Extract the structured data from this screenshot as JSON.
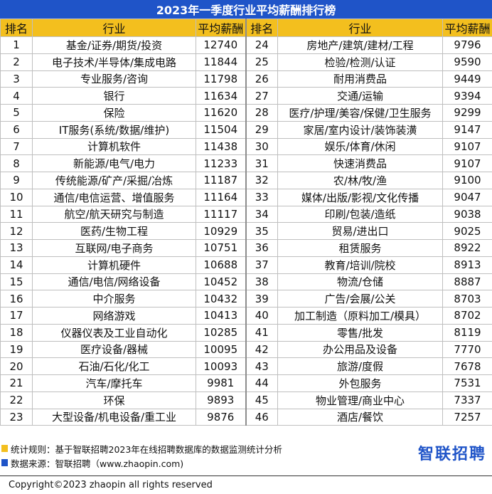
{
  "title": "2023年一季度行业平均薪酬排行榜",
  "headers": [
    "排名",
    "行业",
    "平均薪酬",
    "排名",
    "行业",
    "平均薪酬"
  ],
  "rows": [
    [
      [
        "1",
        "基金/证券/期货/投资",
        "12740"
      ],
      [
        "24",
        "房地产/建筑/建材/工程",
        "9796"
      ]
    ],
    [
      [
        "2",
        "电子技术/半导体/集成电路",
        "11844"
      ],
      [
        "25",
        "检验/检测/认证",
        "9590"
      ]
    ],
    [
      [
        "3",
        "专业服务/咨询",
        "11798"
      ],
      [
        "26",
        "耐用消费品",
        "9449"
      ]
    ],
    [
      [
        "4",
        "银行",
        "11634"
      ],
      [
        "27",
        "交通/运输",
        "9394"
      ]
    ],
    [
      [
        "5",
        "保险",
        "11620"
      ],
      [
        "28",
        "医疗/护理/美容/保健/卫生服务",
        "9299"
      ]
    ],
    [
      [
        "6",
        "IT服务(系统/数据/维护)",
        "11504"
      ],
      [
        "29",
        "家居/室内设计/装饰装潢",
        "9147"
      ]
    ],
    [
      [
        "7",
        "计算机软件",
        "11438"
      ],
      [
        "30",
        "娱乐/体育/休闲",
        "9107"
      ]
    ],
    [
      [
        "8",
        "新能源/电气/电力",
        "11233"
      ],
      [
        "31",
        "快速消费品",
        "9107"
      ]
    ],
    [
      [
        "9",
        "传统能源/矿产/采掘/冶炼",
        "11187"
      ],
      [
        "32",
        "农/林/牧/渔",
        "9100"
      ]
    ],
    [
      [
        "10",
        "通信/电信运营、增值服务",
        "11164"
      ],
      [
        "33",
        "媒体/出版/影视/文化传播",
        "9047"
      ]
    ],
    [
      [
        "11",
        "航空/航天研究与制造",
        "11117"
      ],
      [
        "34",
        "印刷/包装/造纸",
        "9038"
      ]
    ],
    [
      [
        "12",
        "医药/生物工程",
        "10929"
      ],
      [
        "35",
        "贸易/进出口",
        "9025"
      ]
    ],
    [
      [
        "13",
        "互联网/电子商务",
        "10751"
      ],
      [
        "36",
        "租赁服务",
        "8922"
      ]
    ],
    [
      [
        "14",
        "计算机硬件",
        "10688"
      ],
      [
        "37",
        "教育/培训/院校",
        "8913"
      ]
    ],
    [
      [
        "15",
        "通信/电信/网络设备",
        "10452"
      ],
      [
        "38",
        "物流/仓储",
        "8887"
      ]
    ],
    [
      [
        "16",
        "中介服务",
        "10432"
      ],
      [
        "39",
        "广告/会展/公关",
        "8703"
      ]
    ],
    [
      [
        "17",
        "网络游戏",
        "10413"
      ],
      [
        "40",
        "加工制造（原料加工/模具）",
        "8702"
      ]
    ],
    [
      [
        "18",
        "仪器仪表及工业自动化",
        "10285"
      ],
      [
        "41",
        "零售/批发",
        "8119"
      ]
    ],
    [
      [
        "19",
        "医疗设备/器械",
        "10095"
      ],
      [
        "42",
        "办公用品及设备",
        "7770"
      ]
    ],
    [
      [
        "20",
        "石油/石化/化工",
        "10093"
      ],
      [
        "43",
        "旅游/度假",
        "7678"
      ]
    ],
    [
      [
        "21",
        "汽车/摩托车",
        "9981"
      ],
      [
        "44",
        "外包服务",
        "7531"
      ]
    ],
    [
      [
        "22",
        "环保",
        "9893"
      ],
      [
        "45",
        "物业管理/商业中心",
        "7337"
      ]
    ],
    [
      [
        "23",
        "大型设备/机电设备/重工业",
        "9876"
      ],
      [
        "46",
        "酒店/餐饮",
        "7257"
      ]
    ]
  ],
  "footer": {
    "rule_label": "统计规则：基于智联招聘2023年在线招聘数据库的数据监测统计分析",
    "source_label": "数据来源：智联招聘（www.zhaopin.com)",
    "logo_text": "智联招聘",
    "copyright": "Copyright©2023 zhaopin all rights reserved"
  },
  "colors": {
    "title_bg": "#1f54c8",
    "header_bg": "#f3bf1e",
    "rule_marker": "#f3bf1e",
    "source_marker": "#1f54c8"
  }
}
